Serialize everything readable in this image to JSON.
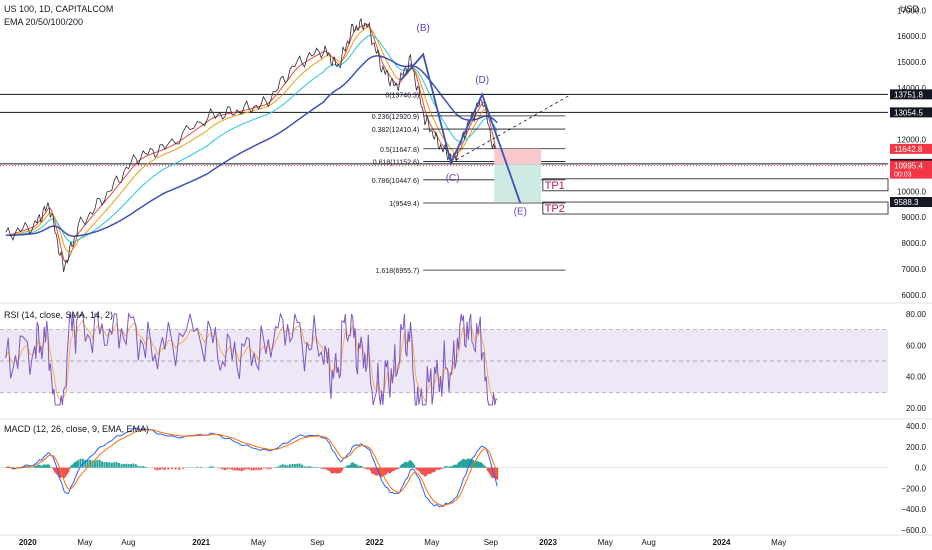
{
  "header": {
    "title": "US 100, 1D, CAPITALCOM",
    "ema_label": "EMA 20/50/100/200",
    "currency": "USD"
  },
  "colors": {
    "price": "#2a2e39",
    "ema20": "#e74c3c",
    "ema50": "#f39c12",
    "ema100": "#26c6da",
    "ema200": "#3f51b5",
    "harmonic": "#3f51b5",
    "harmonic_label": "#6a3fb5",
    "rsi_line": "#7e57c2",
    "rsi_ma": "#f9a825",
    "rsi_band": "#ede7f6",
    "macd_line": "#2962ff",
    "signal_line": "#ff6d00",
    "hist_up": "#26a69a",
    "hist_down": "#ef5350",
    "tp": "#c2185b",
    "stop_zone": "#f8c9cb",
    "target_zone": "#cfe9e3"
  },
  "x_axis": {
    "labels": [
      "2020",
      "May",
      "Aug",
      "2021",
      "May",
      "Sep",
      "2022",
      "May",
      "Sep",
      "2023",
      "May",
      "Aug",
      "2024",
      "May"
    ],
    "bold": [
      "2020",
      "2021",
      "2022",
      "2023",
      "2024"
    ]
  },
  "main_pane": {
    "y_ticks": [
      "17000.0",
      "16000.0",
      "15000.0",
      "14000.0",
      "12000.0",
      "10000.0",
      "9000.0",
      "8000.0",
      "7000.0",
      "6000.0"
    ],
    "price_tags": [
      {
        "text": "13751.8",
        "bg": "#131722"
      },
      {
        "text": "13054.5",
        "bg": "#131722"
      },
      {
        "text": "11642.8",
        "bg": "#f23645"
      },
      {
        "text": "11062.8",
        "bg": "#131722"
      },
      {
        "text": "11046.7",
        "bg": "#131722"
      },
      {
        "text": "10995.4",
        "bg": "#f23645",
        "sub": "00:03"
      },
      {
        "text": "9588.3",
        "bg": "#131722"
      }
    ],
    "fib_levels": [
      {
        "label": "0(13746.3)",
        "value": 13746.3
      },
      {
        "label": "0.236(12920.9)",
        "value": 12920.9
      },
      {
        "label": "0.382(12410.4)",
        "value": 12410.4
      },
      {
        "label": "0.5(11647.8)",
        "value": 11647.8
      },
      {
        "label": "0.618(11152.6)",
        "value": 11152.6
      },
      {
        "label": "0.786(10447.6)",
        "value": 10447.6
      },
      {
        "label": "1(9549.4)",
        "value": 9549.4
      },
      {
        "label": "1.618(6955.7)",
        "value": 6955.7
      }
    ],
    "pattern_points": [
      {
        "label": "(B)"
      },
      {
        "label": "(C)"
      },
      {
        "label": "(D)"
      },
      {
        "label": "(E)"
      }
    ],
    "targets": [
      {
        "label": "TP1",
        "value": 10447.6
      },
      {
        "label": "TP2",
        "value": 9549.4
      }
    ]
  },
  "rsi_pane": {
    "title": "RSI (14, close, SMA, 14, 2)",
    "y_ticks": [
      "80.00",
      "60.00",
      "40.00",
      "20.00"
    ],
    "upper": 70,
    "middle": 50,
    "lower": 30
  },
  "macd_pane": {
    "title": "MACD (12, 26, close, 9, EMA, EMA)",
    "y_ticks": [
      "400.0",
      "200.0",
      "0.0",
      "−200.0",
      "−400.0",
      "−600.0"
    ]
  },
  "chart_data": {
    "type": "line",
    "title": "US 100, 1D, CAPITALCOM",
    "x": [
      "2019-11",
      "2020-01",
      "2020-02",
      "2020-03",
      "2020-04",
      "2020-06",
      "2020-08",
      "2020-10",
      "2021-01",
      "2021-03",
      "2021-05",
      "2021-07",
      "2021-09",
      "2021-10",
      "2021-11",
      "2021-12",
      "2022-01",
      "2022-02",
      "2022-03",
      "2022-04",
      "2022-05",
      "2022-06",
      "2022-07",
      "2022-08",
      "2022-09"
    ],
    "series": [
      {
        "name": "price",
        "values": [
          8300,
          8700,
          9500,
          7000,
          8600,
          9900,
          11300,
          11700,
          12900,
          13100,
          13400,
          14900,
          15500,
          14800,
          16300,
          16500,
          14800,
          14000,
          15100,
          12800,
          11800,
          11200,
          12600,
          13600,
          11000
        ]
      }
    ],
    "ylim": [
      5800,
      17400
    ],
    "rsi": {
      "ylim": [
        15,
        85
      ]
    },
    "macd": {
      "ylim": [
        -620,
        440
      ]
    }
  }
}
